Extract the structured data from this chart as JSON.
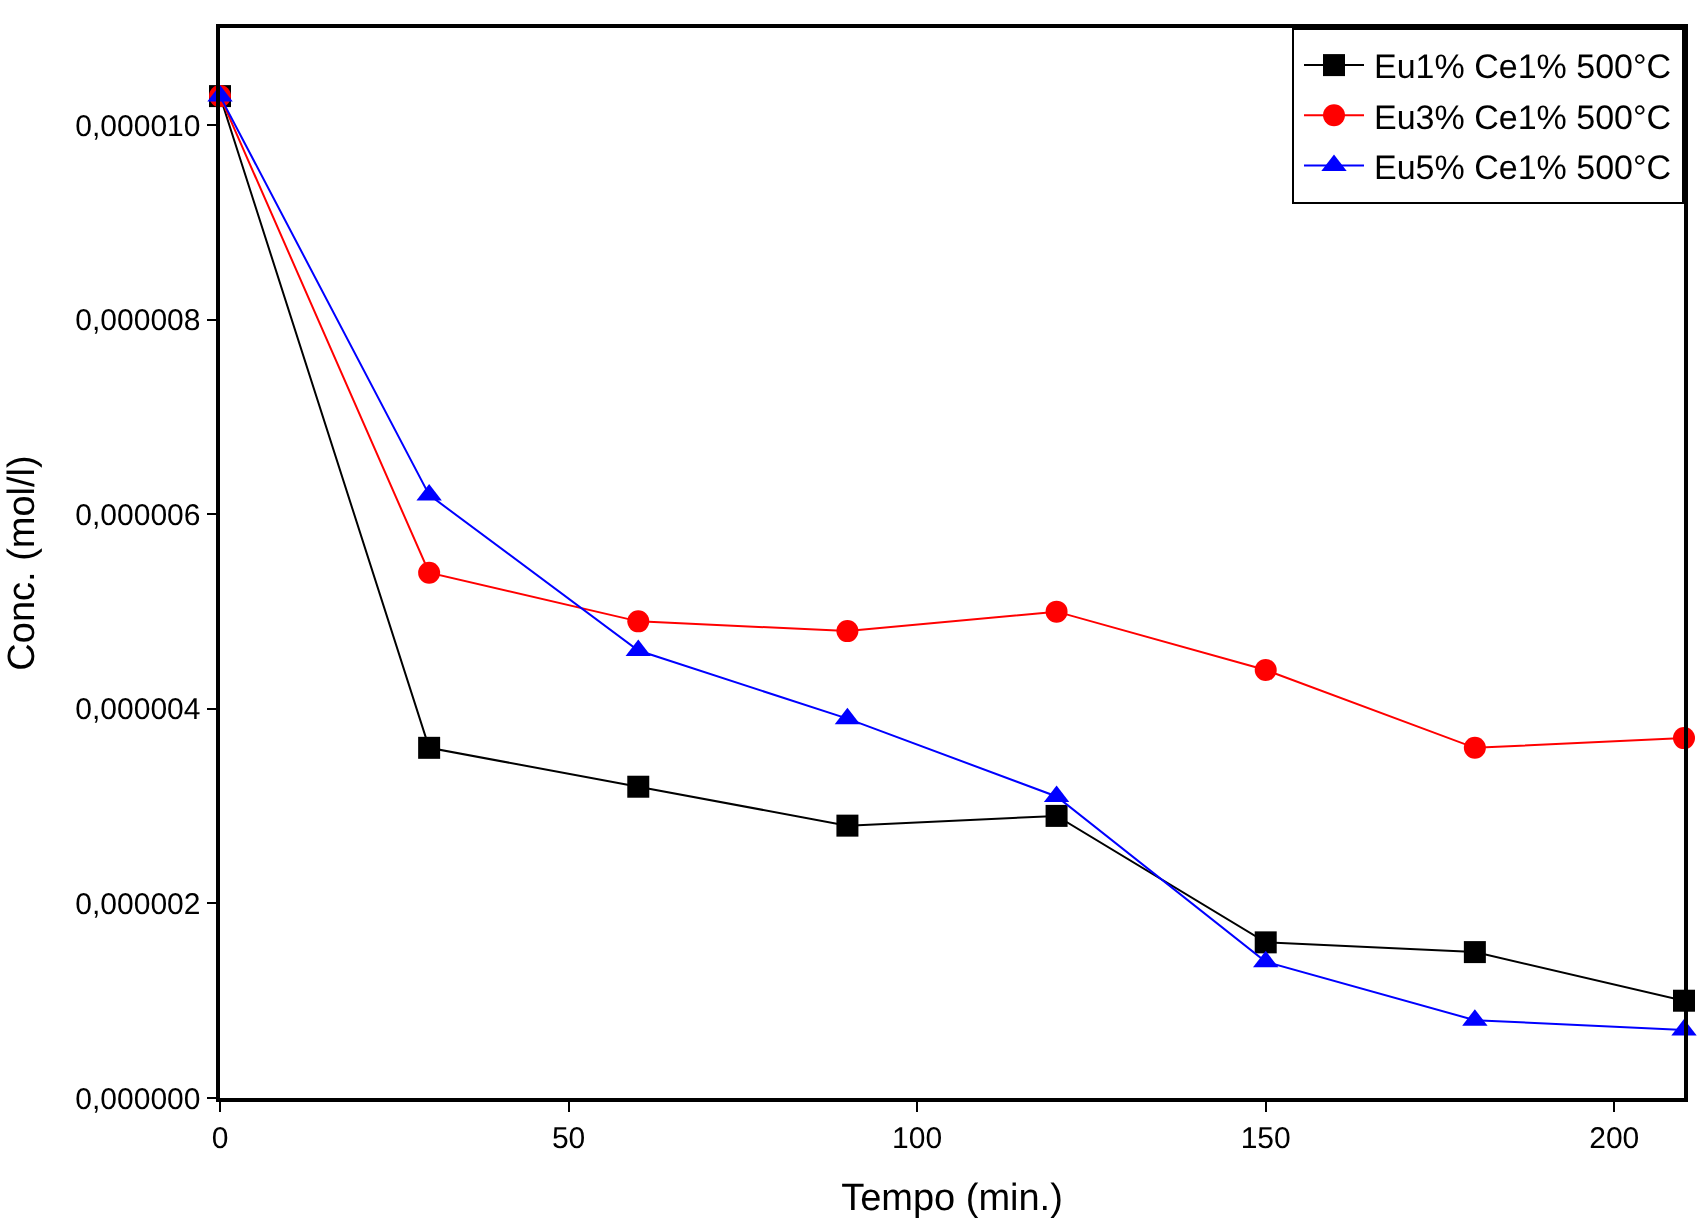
{
  "chart_data": {
    "type": "line",
    "xlabel": "Tempo (min.)",
    "ylabel": "Conc. (mol/l)",
    "x": [
      0,
      30,
      60,
      90,
      120,
      150,
      180,
      210
    ],
    "series": [
      {
        "name": "Eu1% Ce1% 500°C",
        "color": "#000000",
        "marker": "square",
        "values": [
          1.03e-05,
          3.6e-06,
          3.2e-06,
          2.8e-06,
          2.9e-06,
          1.6e-06,
          1.5e-06,
          1e-06
        ]
      },
      {
        "name": "Eu3% Ce1% 500°C",
        "color": "#ff0000",
        "marker": "circle",
        "values": [
          1.03e-05,
          5.4e-06,
          4.9e-06,
          4.8e-06,
          5e-06,
          4.4e-06,
          3.6e-06,
          3.7e-06
        ]
      },
      {
        "name": "Eu5% Ce1% 500°C",
        "color": "#0000ff",
        "marker": "triangle",
        "values": [
          1.03e-05,
          6.2e-06,
          4.6e-06,
          3.9e-06,
          3.1e-06,
          1.4e-06,
          8e-07,
          7e-07
        ]
      }
    ],
    "xlim": [
      0,
      210
    ],
    "xticks": [
      0,
      50,
      100,
      150,
      200
    ],
    "ylim": [
      0,
      1.1e-05
    ],
    "yticks": [
      {
        "value": 0,
        "label": "0,000000"
      },
      {
        "value": 2e-06,
        "label": "0,000002"
      },
      {
        "value": 4e-06,
        "label": "0,000004"
      },
      {
        "value": 6e-06,
        "label": "0,000006"
      },
      {
        "value": 8e-06,
        "label": "0,000008"
      },
      {
        "value": 1e-05,
        "label": "0,000010"
      }
    ],
    "legend": "top right",
    "line_style": "solid"
  }
}
